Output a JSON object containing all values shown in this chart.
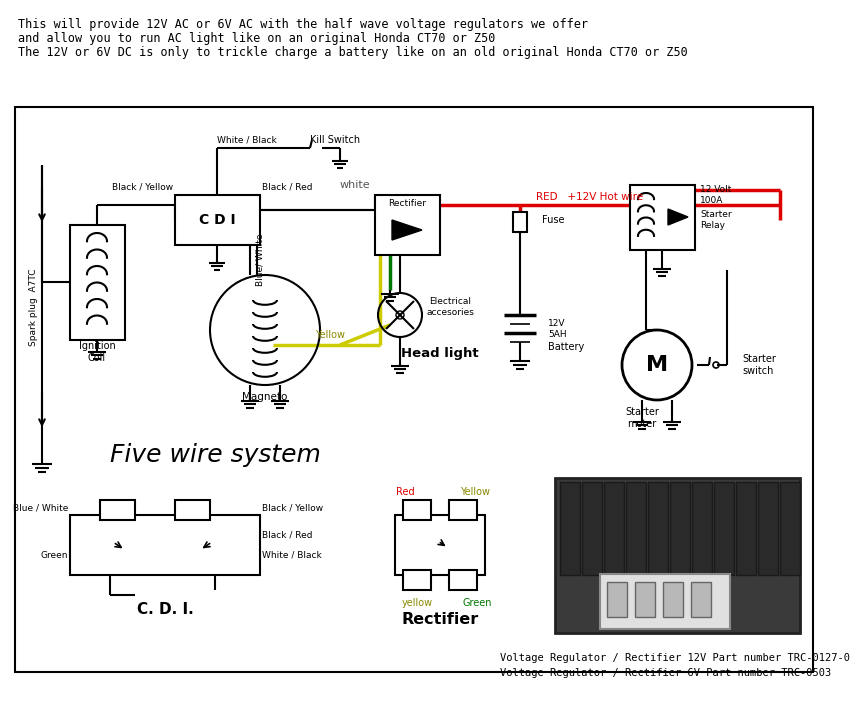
{
  "bg_color": "#ffffff",
  "header_text_line1": "This will provide 12V AC or 6V AC with the half wave voltage regulators we offer",
  "header_text_line2": "and allow you to run AC light like on an original Honda CT70 or Z50",
  "header_text_line3": "The 12V or 6V DC is only to trickle charge a battery like on an old original Honda CT70 or Z50",
  "footer_text1": "Voltage Regulator / Rectifier 12V Part number TRC-0127-0",
  "footer_text2": "Voltage Regulator / Rectifier 6V Part number TRC-0503",
  "title_main": "Five wire system",
  "title_cdi": "C. D. I.",
  "title_rectifier": "Rectifier",
  "red": "#dd0000",
  "yellow": "#cccc00",
  "green": "#007700",
  "black": "#000000"
}
